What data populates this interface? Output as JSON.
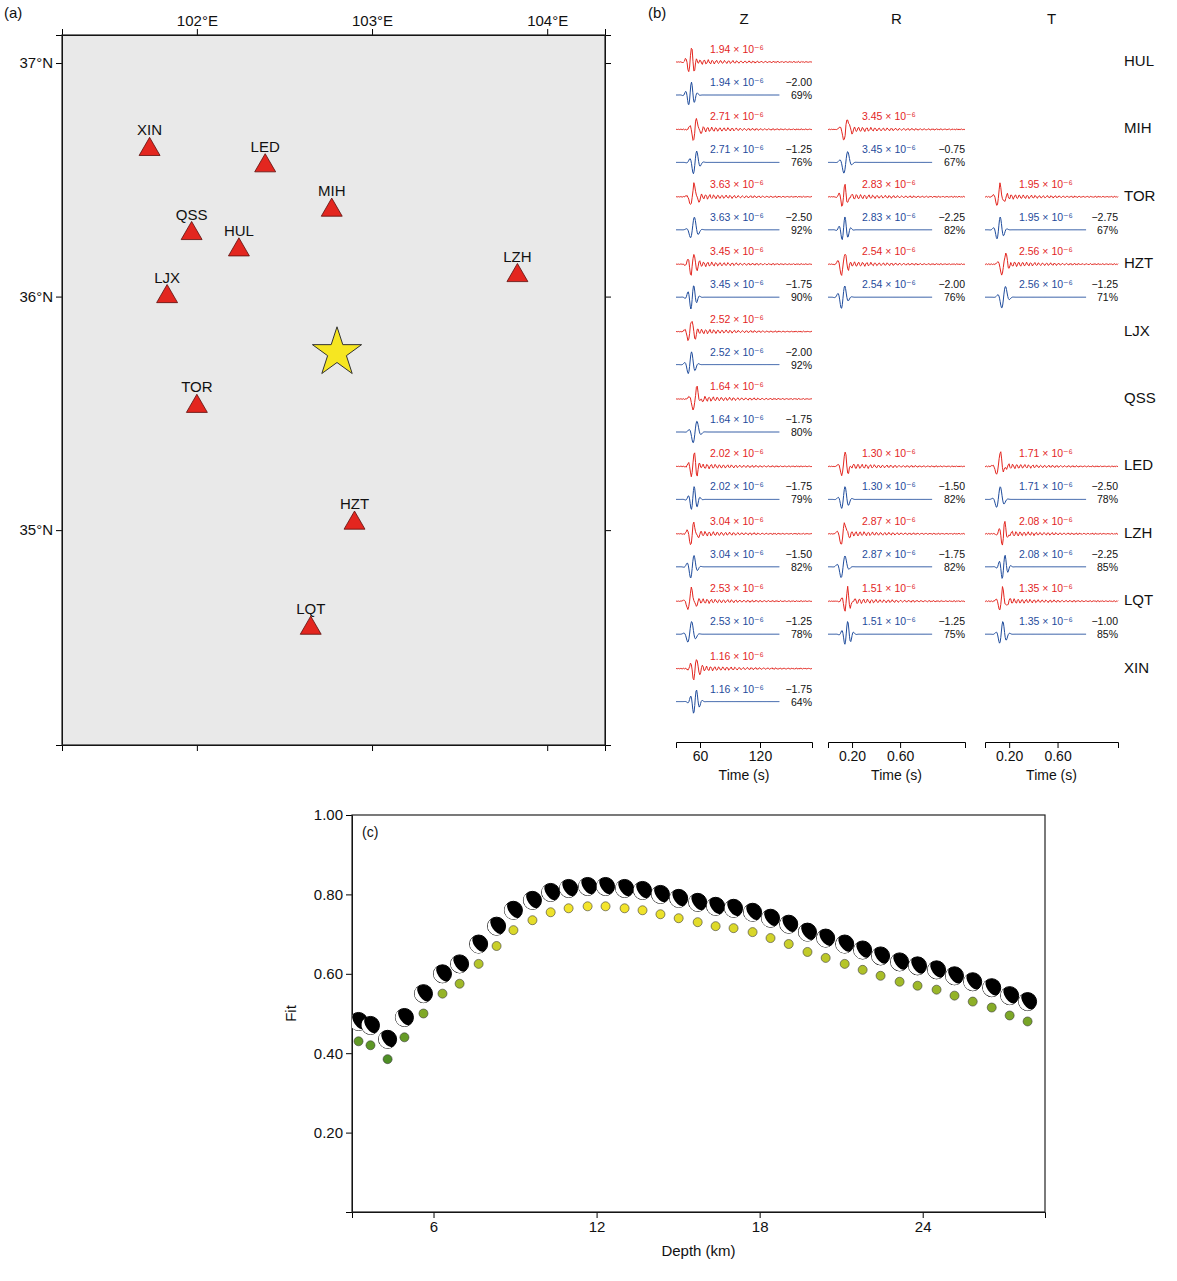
{
  "chart_data": [
    {
      "type": "map",
      "label": "(a)",
      "xlim": [
        101.23,
        104.33
      ],
      "ylim": [
        34.08,
        37.12
      ],
      "xticks": [
        {
          "value": 102,
          "label": "102°E"
        },
        {
          "value": 103,
          "label": "103°E"
        },
        {
          "value": 104,
          "label": "104°E"
        }
      ],
      "yticks": [
        {
          "value": 35,
          "label": "35°N"
        },
        {
          "value": 36,
          "label": "36°N"
        },
        {
          "value": 37,
          "label": "37°N"
        }
      ],
      "color": "#e3261f",
      "marker": "triangle",
      "stations": [
        {
          "name": "XIN",
          "lon": 101.73,
          "lat": 36.63
        },
        {
          "name": "LED",
          "lon": 102.39,
          "lat": 36.56
        },
        {
          "name": "MIH",
          "lon": 102.77,
          "lat": 36.37
        },
        {
          "name": "QSS",
          "lon": 101.97,
          "lat": 36.27
        },
        {
          "name": "HUL",
          "lon": 102.24,
          "lat": 36.2
        },
        {
          "name": "LZH",
          "lon": 103.83,
          "lat": 36.09
        },
        {
          "name": "LJX",
          "lon": 101.83,
          "lat": 36.0
        },
        {
          "name": "TOR",
          "lon": 102.0,
          "lat": 35.53
        },
        {
          "name": "HZT",
          "lon": 102.9,
          "lat": 35.03
        },
        {
          "name": "LQT",
          "lon": 102.65,
          "lat": 34.58
        }
      ],
      "epicenter": {
        "lon": 102.8,
        "lat": 35.76
      }
    },
    {
      "type": "waveform",
      "label": "(b)",
      "colors": [
        "#e3261f",
        "#1f4c9c"
      ],
      "columns": [
        {
          "name": "Z",
          "xlabel": "Time (s)",
          "xlim": [
            36,
            172
          ],
          "xticks": [
            60,
            120
          ]
        },
        {
          "name": "R",
          "xlabel": "Time (s)",
          "xlim": [
            0,
            1.14
          ],
          "xticks": [
            {
              "value": 0.2,
              "label": "0.20"
            },
            {
              "value": 0.6,
              "label": "0.60"
            }
          ]
        },
        {
          "name": "T",
          "xlabel": "Time (s)",
          "xlim": [
            0,
            1.1
          ],
          "xticks": [
            {
              "value": 0.2,
              "label": "0.20"
            },
            {
              "value": 0.6,
              "label": "0.60"
            }
          ]
        }
      ],
      "stations": [
        {
          "name": "HUL",
          "traces": [
            {
              "amplitude": 1.94e-06,
              "amplitude_label": "1.94 × 10⁻⁶",
              "shift": -2.0,
              "shift_label": "−2.00",
              "fit": 69,
              "fit_label": "69%"
            },
            null,
            null
          ]
        },
        {
          "name": "MIH",
          "traces": [
            {
              "amplitude": 2.71e-06,
              "amplitude_label": "2.71 × 10⁻⁶",
              "shift": -1.25,
              "shift_label": "−1.25",
              "fit": 76,
              "fit_label": "76%"
            },
            {
              "amplitude": 3.45e-06,
              "amplitude_label": "3.45 × 10⁻⁶",
              "shift": -0.75,
              "shift_label": "−0.75",
              "fit": 67,
              "fit_label": "67%"
            },
            null
          ]
        },
        {
          "name": "TOR",
          "traces": [
            {
              "amplitude": 3.63e-06,
              "amplitude_label": "3.63 × 10⁻⁶",
              "shift": -2.5,
              "shift_label": "−2.50",
              "fit": 92,
              "fit_label": "92%"
            },
            {
              "amplitude": 2.83e-06,
              "amplitude_label": "2.83 × 10⁻⁶",
              "shift": -2.25,
              "shift_label": "−2.25",
              "fit": 82,
              "fit_label": "82%"
            },
            {
              "amplitude": 1.95e-06,
              "amplitude_label": "1.95 × 10⁻⁶",
              "shift": -2.75,
              "shift_label": "−2.75",
              "fit": 67,
              "fit_label": "67%"
            }
          ]
        },
        {
          "name": "HZT",
          "traces": [
            {
              "amplitude": 3.45e-06,
              "amplitude_label": "3.45 × 10⁻⁶",
              "shift": -1.75,
              "shift_label": "−1.75",
              "fit": 90,
              "fit_label": "90%"
            },
            {
              "amplitude": 2.54e-06,
              "amplitude_label": "2.54 × 10⁻⁶",
              "shift": -2.0,
              "shift_label": "−2.00",
              "fit": 76,
              "fit_label": "76%"
            },
            {
              "amplitude": 2.56e-06,
              "amplitude_label": "2.56 × 10⁻⁶",
              "shift": -1.25,
              "shift_label": "−1.25",
              "fit": 71,
              "fit_label": "71%"
            }
          ]
        },
        {
          "name": "LJX",
          "traces": [
            {
              "amplitude": 2.52e-06,
              "amplitude_label": "2.52 × 10⁻⁶",
              "shift": -2.0,
              "shift_label": "−2.00",
              "fit": 92,
              "fit_label": "92%"
            },
            null,
            null
          ]
        },
        {
          "name": "QSS",
          "traces": [
            {
              "amplitude": 1.64e-06,
              "amplitude_label": "1.64 × 10⁻⁶",
              "shift": -1.75,
              "shift_label": "−1.75",
              "fit": 80,
              "fit_label": "80%"
            },
            null,
            null
          ]
        },
        {
          "name": "LED",
          "traces": [
            {
              "amplitude": 2.02e-06,
              "amplitude_label": "2.02 × 10⁻⁶",
              "shift": -1.75,
              "shift_label": "−1.75",
              "fit": 79,
              "fit_label": "79%"
            },
            {
              "amplitude": 1.3e-06,
              "amplitude_label": "1.30 × 10⁻⁶",
              "shift": -1.5,
              "shift_label": "−1.50",
              "fit": 82,
              "fit_label": "82%"
            },
            {
              "amplitude": 1.71e-06,
              "amplitude_label": "1.71 × 10⁻⁶",
              "shift": -2.5,
              "shift_label": "−2.50",
              "fit": 78,
              "fit_label": "78%"
            }
          ]
        },
        {
          "name": "LZH",
          "traces": [
            {
              "amplitude": 3.04e-06,
              "amplitude_label": "3.04 × 10⁻⁶",
              "shift": -1.5,
              "shift_label": "−1.50",
              "fit": 82,
              "fit_label": "82%"
            },
            {
              "amplitude": 2.87e-06,
              "amplitude_label": "2.87 × 10⁻⁶",
              "shift": -1.75,
              "shift_label": "−1.75",
              "fit": 82,
              "fit_label": "82%"
            },
            {
              "amplitude": 2.08e-06,
              "amplitude_label": "2.08 × 10⁻⁶",
              "shift": -2.25,
              "shift_label": "−2.25",
              "fit": 85,
              "fit_label": "85%"
            }
          ]
        },
        {
          "name": "LQT",
          "traces": [
            {
              "amplitude": 2.53e-06,
              "amplitude_label": "2.53 × 10⁻⁶",
              "shift": -1.25,
              "shift_label": "−1.25",
              "fit": 78,
              "fit_label": "78%"
            },
            {
              "amplitude": 1.51e-06,
              "amplitude_label": "1.51 × 10⁻⁶",
              "shift": -1.25,
              "shift_label": "−1.25",
              "fit": 75,
              "fit_label": "75%"
            },
            {
              "amplitude": 1.35e-06,
              "amplitude_label": "1.35 × 10⁻⁶",
              "shift": -1.0,
              "shift_label": "−1.00",
              "fit": 85,
              "fit_label": "85%"
            }
          ]
        },
        {
          "name": "XIN",
          "traces": [
            {
              "amplitude": 1.16e-06,
              "amplitude_label": "1.16 × 10⁻⁶",
              "shift": -1.75,
              "shift_label": "−1.75",
              "fit": 64,
              "fit_label": "64%"
            },
            null,
            null
          ]
        }
      ]
    },
    {
      "type": "scatter",
      "label": "(c)",
      "xlabel": "Depth (km)",
      "ylabel": "Fit",
      "xlim": [
        3.0,
        28.5
      ],
      "ylim": [
        0,
        1
      ],
      "xticks": [
        6,
        12,
        18,
        24
      ],
      "yticks": [
        {
          "value": 0.2,
          "label": "0.20"
        },
        {
          "value": 0.4,
          "label": "0.40"
        },
        {
          "value": 0.6,
          "label": "0.60"
        },
        {
          "value": 0.8,
          "label": "0.80"
        },
        {
          "value": 1.0,
          "label": "1.00"
        }
      ],
      "x": [
        3.24,
        3.68,
        4.31,
        4.93,
        5.63,
        6.33,
        6.96,
        7.66,
        8.32,
        8.94,
        9.64,
        10.31,
        10.97,
        11.67,
        12.33,
        13.03,
        13.69,
        14.35,
        15.02,
        15.72,
        16.38,
        17.04,
        17.74,
        18.4,
        19.07,
        19.76,
        20.43,
        21.13,
        21.79,
        22.45,
        23.15,
        23.81,
        24.51,
        25.17,
        25.84,
        26.54,
        27.2,
        27.86
      ],
      "series": [
        {
          "color": "#000000",
          "marker": "beachball",
          "values": [
            0.48,
            0.47,
            0.435,
            0.49,
            0.55,
            0.6,
            0.625,
            0.675,
            0.72,
            0.76,
            0.785,
            0.805,
            0.815,
            0.82,
            0.82,
            0.815,
            0.81,
            0.8,
            0.79,
            0.78,
            0.77,
            0.765,
            0.755,
            0.74,
            0.725,
            0.705,
            0.69,
            0.675,
            0.66,
            0.645,
            0.63,
            0.62,
            0.61,
            0.595,
            0.58,
            0.565,
            0.545,
            0.53
          ]
        },
        {
          "marker": "circle",
          "values": [
            0.43,
            0.42,
            0.385,
            0.44,
            0.5,
            0.55,
            0.575,
            0.625,
            0.67,
            0.71,
            0.735,
            0.755,
            0.765,
            0.77,
            0.77,
            0.765,
            0.76,
            0.75,
            0.74,
            0.73,
            0.72,
            0.715,
            0.705,
            0.69,
            0.675,
            0.655,
            0.64,
            0.625,
            0.61,
            0.595,
            0.58,
            0.57,
            0.56,
            0.545,
            0.53,
            0.515,
            0.495,
            0.48
          ]
        }
      ]
    }
  ]
}
